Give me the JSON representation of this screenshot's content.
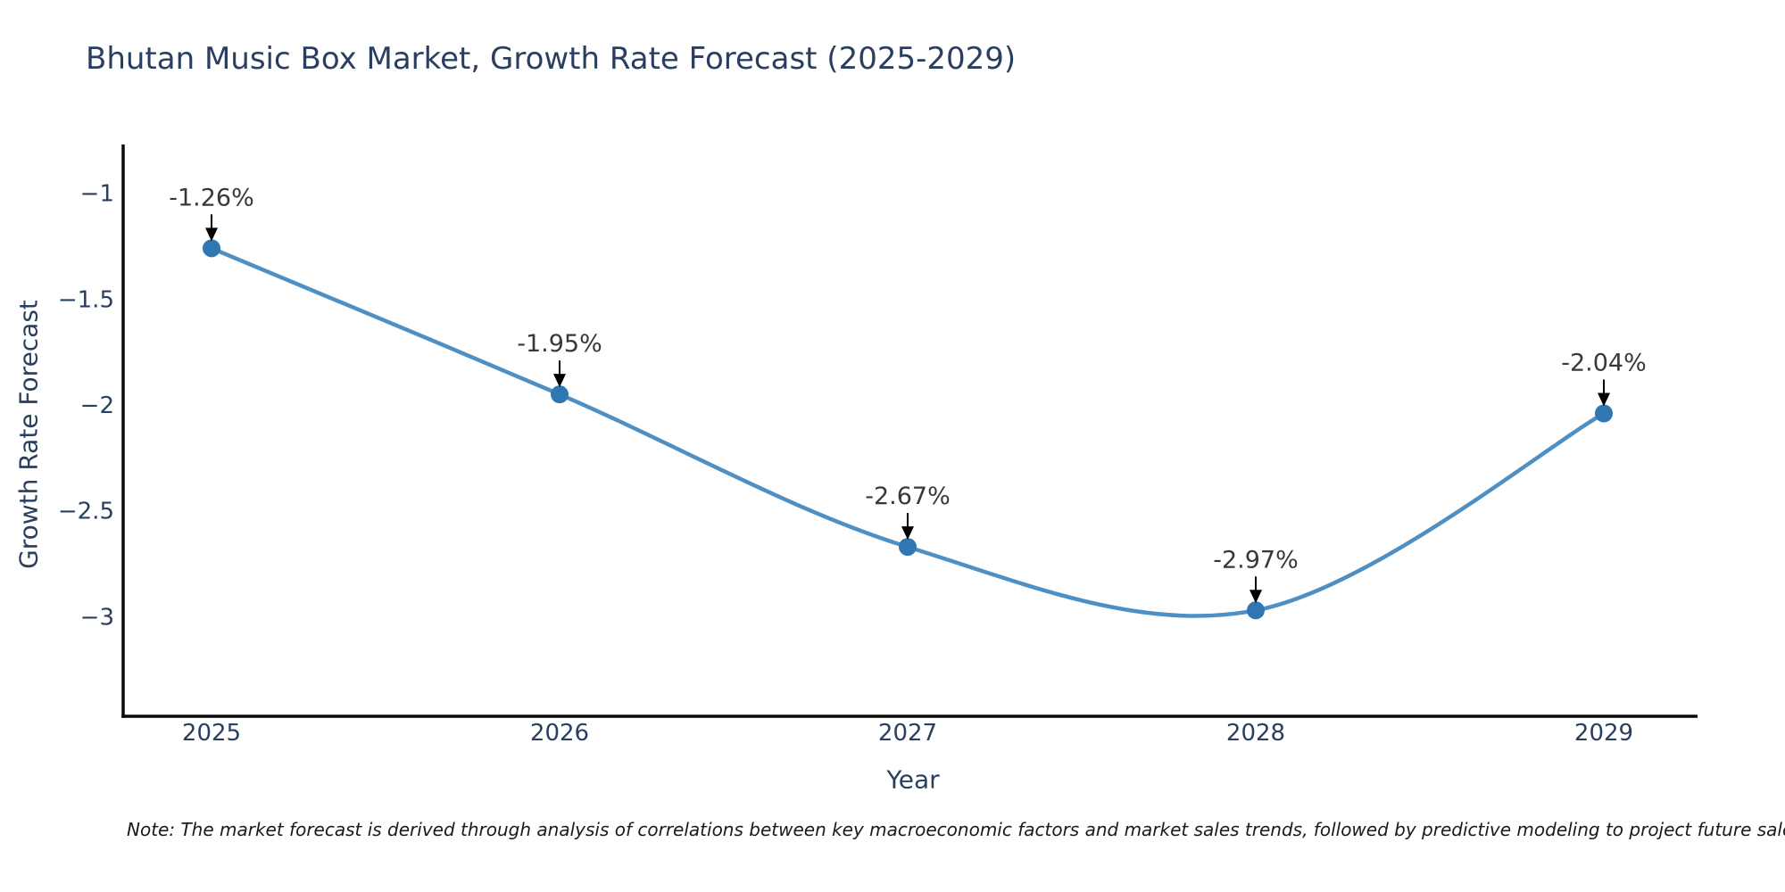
{
  "chart_data": {
    "type": "line",
    "title": "Bhutan Music Box Market, Growth Rate Forecast (2025-2029)",
    "xlabel": "Year",
    "ylabel": "Growth Rate Forecast",
    "categories": [
      "2025",
      "2026",
      "2027",
      "2028",
      "2029"
    ],
    "series": [
      {
        "name": "Growth Rate Forecast",
        "values": [
          -1.26,
          -1.95,
          -2.67,
          -2.97,
          -2.04
        ],
        "point_labels": [
          "-1.26%",
          "-1.95%",
          "-2.67%",
          "-2.97%",
          "-2.04%"
        ]
      }
    ],
    "y_ticks": {
      "values": [
        -1,
        -1.5,
        -2,
        -2.5,
        -3
      ],
      "labels": [
        "−1",
        "−1.5",
        "−2",
        "−2.5",
        "−3"
      ]
    },
    "ylim": [
      -3.47,
      -0.77
    ],
    "line_shape": "spline",
    "grid": false,
    "legend_position": "none",
    "annotations_style": "label-with-arrow-down-to-point",
    "colors": {
      "line": "#4e8fc4",
      "marker": "#2f77b2",
      "axis_line": "#0a0a0a",
      "text": "#2a3f5f",
      "annotation_text": "#383838",
      "arrow": "#000000",
      "background": "#ffffff"
    }
  },
  "note": {
    "text": "Note: The market forecast is derived through analysis of correlations between key macroeconomic factors and market sales trends, followed by predictive modeling to project future sales."
  }
}
